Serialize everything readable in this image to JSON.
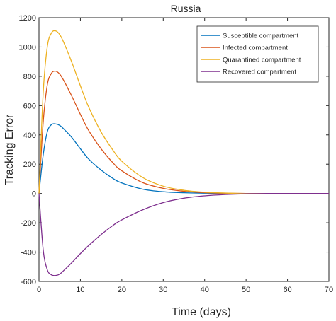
{
  "chart_data": {
    "type": "line",
    "title": "Russia",
    "xlabel": "Time (days)",
    "ylabel": "Tracking Error",
    "xlim": [
      0,
      70
    ],
    "ylim": [
      -600,
      1200
    ],
    "xticks": [
      0,
      10,
      20,
      30,
      40,
      50,
      60,
      70
    ],
    "yticks": [
      -600,
      -400,
      -200,
      0,
      200,
      400,
      600,
      800,
      1000,
      1200
    ],
    "grid": false,
    "legend_position": "top-right",
    "series": [
      {
        "name": "Susceptible compartment",
        "color": "#0072BD",
        "x": [
          0,
          1,
          2,
          3,
          4,
          5,
          6,
          8,
          10,
          12,
          15,
          18,
          20,
          25,
          30,
          35,
          40,
          45,
          50,
          55,
          60,
          70
        ],
        "y": [
          0,
          260,
          420,
          470,
          475,
          465,
          440,
          380,
          305,
          235,
          160,
          100,
          72,
          30,
          12,
          5,
          2,
          0,
          0,
          0,
          0,
          0
        ]
      },
      {
        "name": "Infected compartment",
        "color": "#D95319",
        "x": [
          0,
          1,
          2,
          3,
          4,
          5,
          6,
          8,
          10,
          12,
          15,
          18,
          20,
          25,
          30,
          35,
          40,
          45,
          50,
          55,
          60,
          70
        ],
        "y": [
          0,
          480,
          740,
          820,
          835,
          815,
          770,
          660,
          540,
          430,
          305,
          205,
          155,
          75,
          35,
          15,
          6,
          2,
          0,
          0,
          0,
          0
        ]
      },
      {
        "name": "Quarantined compartment",
        "color": "#EDB120",
        "x": [
          0,
          1,
          2,
          3,
          4,
          5,
          6,
          8,
          10,
          12,
          15,
          18,
          20,
          25,
          30,
          35,
          40,
          45,
          50,
          55,
          60,
          70
        ],
        "y": [
          0,
          680,
          1000,
          1095,
          1110,
          1085,
          1030,
          890,
          735,
          590,
          420,
          290,
          220,
          110,
          50,
          22,
          9,
          3,
          0,
          0,
          0,
          0
        ]
      },
      {
        "name": "Recovered compartment",
        "color": "#7E2F8E",
        "x": [
          0,
          1,
          2,
          3,
          4,
          5,
          6,
          8,
          10,
          12,
          15,
          18,
          20,
          25,
          30,
          35,
          40,
          45,
          50,
          55,
          60,
          70
        ],
        "y": [
          0,
          -380,
          -520,
          -555,
          -560,
          -550,
          -525,
          -470,
          -410,
          -355,
          -280,
          -215,
          -180,
          -112,
          -62,
          -32,
          -16,
          -7,
          -2,
          0,
          0,
          0
        ]
      }
    ]
  }
}
